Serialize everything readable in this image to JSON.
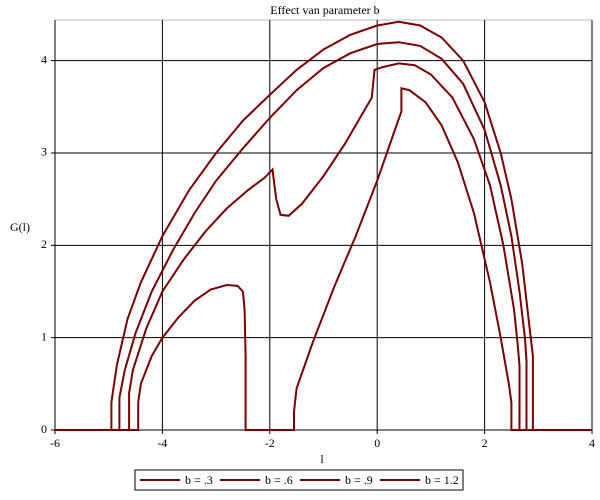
{
  "chart_data": {
    "type": "line",
    "title": "Effect van parameter b",
    "x_label": "l",
    "y_label": "G(l)",
    "xlim": [
      -6,
      4
    ],
    "ylim": [
      0,
      4.44
    ],
    "xticks": [
      -6,
      -4,
      -2,
      0,
      2,
      4
    ],
    "yticks": [
      0,
      1,
      2,
      3,
      4
    ],
    "grid": true,
    "legend": "bottom",
    "series": [
      {
        "name": "b = .3",
        "color": "#7a0000",
        "x": [
          -6,
          -4.45,
          -4.45,
          -4.4,
          -4.2,
          -4.0,
          -3.7,
          -3.4,
          -3.1,
          -2.8,
          -2.6,
          -2.5,
          -2.47,
          -2.45,
          -2.45,
          -1.55,
          -1.55,
          -1.5,
          -1.2,
          -0.8,
          -0.4,
          0,
          0.3,
          0.45,
          0.45,
          0.6,
          0.9,
          1.2,
          1.5,
          1.8,
          2.1,
          2.3,
          2.45,
          2.5,
          2.5,
          4
        ],
        "values": [
          0,
          0,
          0.3,
          0.5,
          0.8,
          1.0,
          1.22,
          1.4,
          1.52,
          1.57,
          1.56,
          1.5,
          1.3,
          0.8,
          0,
          0,
          0.2,
          0.45,
          0.95,
          1.55,
          2.1,
          2.7,
          3.2,
          3.45,
          3.7,
          3.68,
          3.55,
          3.3,
          2.9,
          2.35,
          1.6,
          1.0,
          0.5,
          0.3,
          0,
          0
        ]
      },
      {
        "name": "b = .6",
        "color": "#7a0000",
        "x": [
          -6,
          -4.62,
          -4.62,
          -4.55,
          -4.3,
          -4.0,
          -3.6,
          -3.2,
          -2.8,
          -2.4,
          -2.1,
          -1.95,
          -1.88,
          -1.8,
          -1.65,
          -1.4,
          -1.0,
          -0.6,
          -0.3,
          -0.1,
          -0.05,
          0.1,
          0.4,
          0.7,
          1.0,
          1.4,
          1.8,
          2.1,
          2.35,
          2.55,
          2.62,
          2.65,
          2.65,
          4
        ],
        "values": [
          0,
          0,
          0.4,
          0.65,
          1.1,
          1.5,
          1.85,
          2.15,
          2.4,
          2.6,
          2.73,
          2.82,
          2.5,
          2.33,
          2.32,
          2.45,
          2.75,
          3.1,
          3.4,
          3.6,
          3.9,
          3.93,
          3.97,
          3.95,
          3.85,
          3.6,
          3.15,
          2.65,
          2.0,
          1.3,
          0.9,
          0.7,
          0,
          0
        ]
      },
      {
        "name": "b = .9",
        "color": "#7a0000",
        "x": [
          -6,
          -4.8,
          -4.8,
          -4.7,
          -4.5,
          -4.2,
          -3.8,
          -3.4,
          -3.0,
          -2.5,
          -2.0,
          -1.5,
          -1.0,
          -0.5,
          0,
          0.4,
          0.8,
          1.2,
          1.6,
          2.0,
          2.3,
          2.5,
          2.65,
          2.75,
          2.78,
          2.78,
          4
        ],
        "values": [
          0,
          0,
          0.35,
          0.65,
          1.05,
          1.5,
          1.95,
          2.35,
          2.7,
          3.05,
          3.38,
          3.68,
          3.92,
          4.08,
          4.18,
          4.2,
          4.16,
          4.02,
          3.75,
          3.25,
          2.65,
          2.1,
          1.5,
          1.0,
          0.75,
          0,
          0
        ]
      },
      {
        "name": "b = 1.2",
        "color": "#7a0000",
        "x": [
          -6,
          -4.95,
          -4.95,
          -4.85,
          -4.65,
          -4.4,
          -4.0,
          -3.5,
          -3.0,
          -2.5,
          -2.0,
          -1.5,
          -1.0,
          -0.5,
          0,
          0.4,
          0.8,
          1.2,
          1.6,
          2.0,
          2.3,
          2.5,
          2.7,
          2.82,
          2.9,
          2.9,
          4
        ],
        "values": [
          0,
          0,
          0.3,
          0.7,
          1.2,
          1.6,
          2.1,
          2.6,
          3.0,
          3.35,
          3.63,
          3.9,
          4.12,
          4.28,
          4.38,
          4.42,
          4.38,
          4.25,
          4.0,
          3.55,
          3.0,
          2.5,
          1.8,
          1.2,
          0.8,
          0,
          0
        ]
      }
    ]
  }
}
